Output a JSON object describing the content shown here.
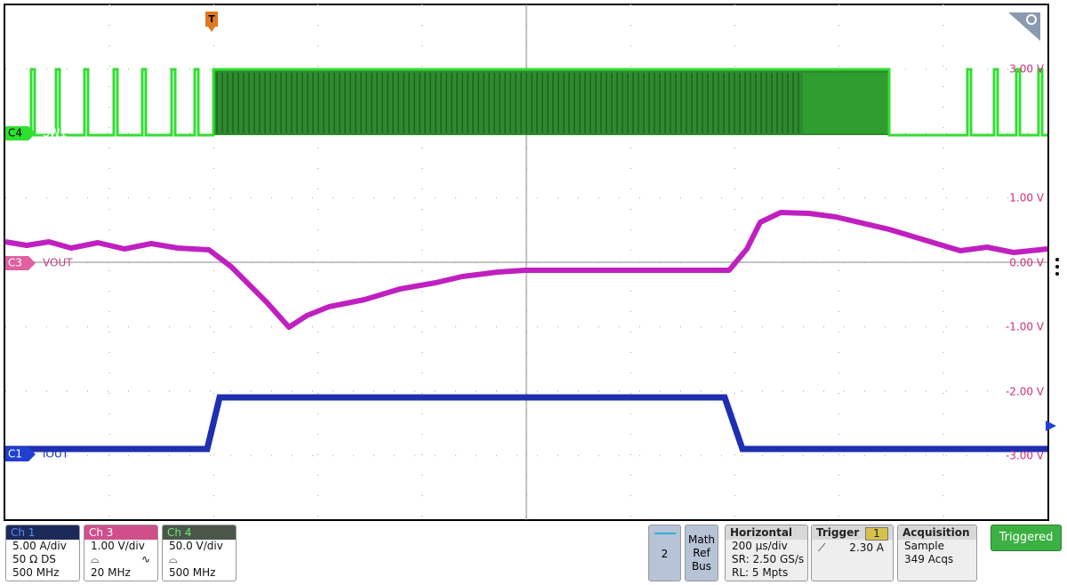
{
  "graticule": {
    "trigger_marker": "T",
    "channel_markers": [
      {
        "id": "C4",
        "label": "SW1"
      },
      {
        "id": "C3",
        "label": "VOUT"
      },
      {
        "id": "C1",
        "label": "IOUT"
      }
    ],
    "scale_labels": [
      "3.00 V",
      "1.00 V",
      "0.00 V",
      "-1.00 V",
      "-2.00 V",
      "-3.00 V"
    ]
  },
  "channels": [
    {
      "name": "Ch 1",
      "lines": [
        "5.00 A/div",
        "50 Ω  DS",
        "500 MHz"
      ]
    },
    {
      "name": "Ch 3",
      "lines": [
        "1.00 V/div",
        "20 MHz"
      ]
    },
    {
      "name": "Ch 4",
      "lines": [
        "50.0 V/div",
        "500 MHz"
      ]
    }
  ],
  "buttons": {
    "count": "2",
    "math": [
      "Math",
      "Ref",
      "Bus"
    ]
  },
  "horizontal": {
    "title": "Horizontal",
    "lines": [
      "200 µs/div",
      "SR: 2.50 GS/s",
      "RL: 5 Mpts"
    ]
  },
  "trigger": {
    "title": "Trigger",
    "source": "1",
    "level": "2.30 A"
  },
  "acquisition": {
    "title": "Acquisition",
    "lines": [
      "Sample",
      "349 Acqs"
    ]
  },
  "status": "Triggered"
}
